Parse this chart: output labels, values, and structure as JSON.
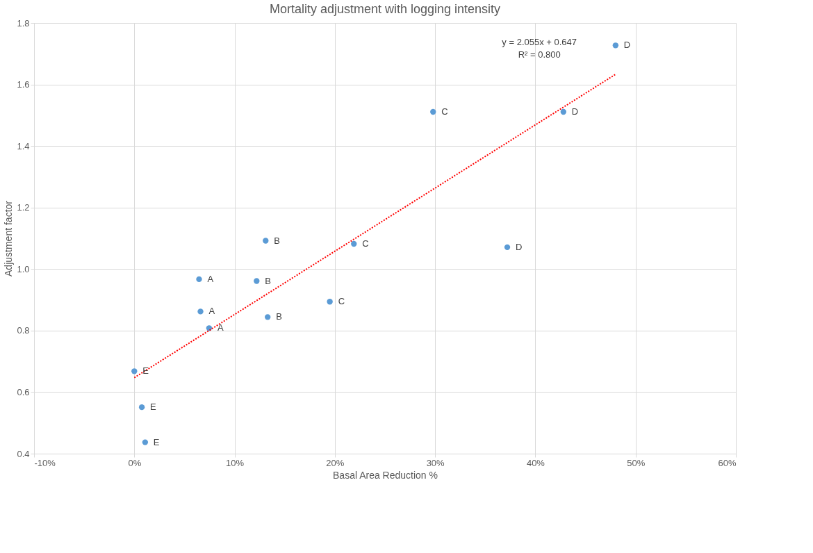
{
  "chart_data": {
    "type": "scatter",
    "title": "Mortality adjustment with logging intensity",
    "xlabel": "Basal Area Reduction %",
    "ylabel": "Adjustment factor",
    "series": [
      {
        "type": "scatter",
        "marker": "circle",
        "color": "#5b9bd5",
        "x": [
          0.0,
          0.0075,
          0.0108,
          0.0646,
          0.066,
          0.0746,
          0.131,
          0.122,
          0.133,
          0.195,
          0.219,
          0.298,
          0.372,
          0.428,
          0.48
        ],
        "values": [
          0.668,
          0.551,
          0.437,
          0.967,
          0.862,
          0.808,
          1.092,
          0.961,
          0.844,
          0.894,
          1.082,
          1.511,
          1.071,
          1.511,
          1.727
        ]
      },
      {
        "type": "line",
        "marker": "none",
        "color": "#ff0000",
        "line_style": "dotted",
        "x": [
          0.0,
          0.48
        ],
        "values": [
          0.647,
          1.633
        ]
      }
    ],
    "annotations": [
      {
        "text": "E",
        "x": 0.0,
        "y": 0.668
      },
      {
        "text": "E",
        "x": 0.0075,
        "y": 0.551
      },
      {
        "text": "E",
        "x": 0.0108,
        "y": 0.437
      },
      {
        "text": "A",
        "x": 0.0646,
        "y": 0.967
      },
      {
        "text": "A",
        "x": 0.066,
        "y": 0.862
      },
      {
        "text": "A",
        "x": 0.0746,
        "y": 0.808
      },
      {
        "text": "B",
        "x": 0.131,
        "y": 1.092
      },
      {
        "text": "B",
        "x": 0.122,
        "y": 0.961
      },
      {
        "text": "B",
        "x": 0.133,
        "y": 0.844
      },
      {
        "text": "C",
        "x": 0.195,
        "y": 0.894
      },
      {
        "text": "C",
        "x": 0.219,
        "y": 1.082
      },
      {
        "text": "C",
        "x": 0.298,
        "y": 1.511
      },
      {
        "text": "D",
        "x": 0.372,
        "y": 1.071
      },
      {
        "text": "D",
        "x": 0.428,
        "y": 1.511
      },
      {
        "text": "D",
        "x": 0.48,
        "y": 1.727
      },
      "y = 2.055x + 0.647",
      "R² = 0.800"
    ],
    "xlim": [
      -0.1,
      0.6
    ],
    "xticks": [
      {
        "value": -0.1,
        "label": "-10%"
      },
      {
        "value": 0,
        "label": "0%"
      },
      {
        "value": 0.1,
        "label": "10%"
      },
      {
        "value": 0.2,
        "label": "20%"
      },
      {
        "value": 0.3,
        "label": "30%"
      },
      {
        "value": 0.4,
        "label": "40%"
      },
      {
        "value": 0.5,
        "label": "50%"
      },
      {
        "value": 0.6,
        "label": "60%"
      }
    ],
    "ylim": [
      0.4,
      1.8
    ],
    "yticks": [
      {
        "value": 0.4,
        "label": "0.4"
      },
      {
        "value": 0.6,
        "label": "0.6"
      },
      {
        "value": 0.8,
        "label": "0.8"
      },
      {
        "value": 1.0,
        "label": "1.0"
      },
      {
        "value": 1.2,
        "label": "1.2"
      },
      {
        "value": 1.4,
        "label": "1.4"
      },
      {
        "value": 1.6,
        "label": "1.6"
      },
      {
        "value": 1.8,
        "label": "1.8"
      }
    ],
    "grid": true
  }
}
